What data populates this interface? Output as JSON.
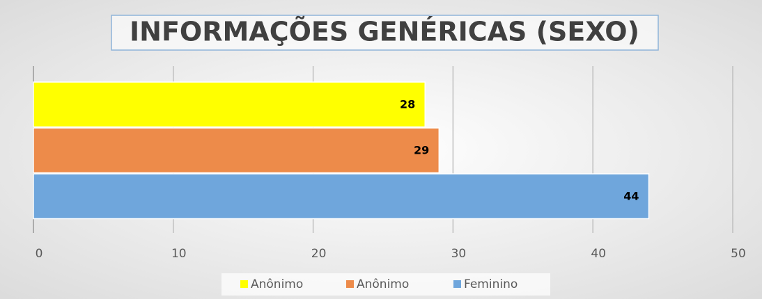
{
  "chart_data": {
    "type": "bar",
    "orientation": "horizontal",
    "title": "INFORMAÇÕES GENÉRICAS (SEXO)",
    "categories": [
      null
    ],
    "series": [
      {
        "name": "Anônimo",
        "color": "#ffff00",
        "values": [
          28
        ]
      },
      {
        "name": "Anônimo",
        "color": "#ed8b4a",
        "values": [
          29
        ]
      },
      {
        "name": "Feminino",
        "color": "#6fa6dc",
        "values": [
          44
        ]
      }
    ],
    "xlim": [
      0,
      50
    ],
    "xticks": [
      0,
      10,
      20,
      30,
      40,
      50
    ],
    "grid": true,
    "legend": "bottom"
  }
}
